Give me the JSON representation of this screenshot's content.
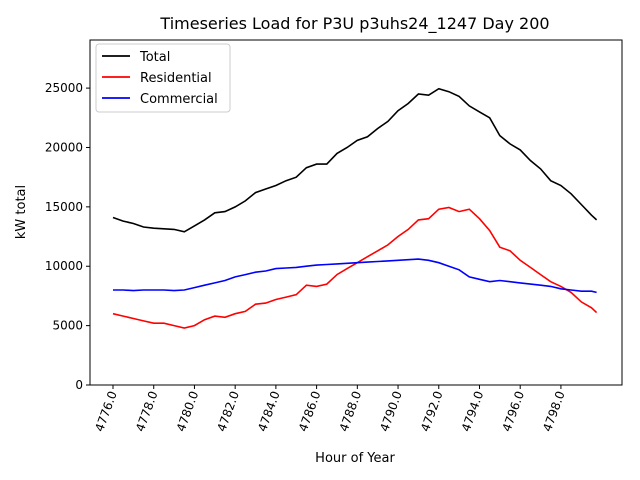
{
  "chart_data": {
    "type": "line",
    "title": "Timeseries Load for P3U p3uhs24_1247  Day 200",
    "xlabel": "Hour of Year",
    "ylabel": "kW total",
    "xlim": [
      4774.87,
      4801.0
    ],
    "ylim": [
      0,
      29050
    ],
    "xticks": [
      4776,
      4778,
      4780,
      4782,
      4784,
      4786,
      4788,
      4790,
      4792,
      4794,
      4796,
      4798
    ],
    "xtick_labels": [
      "4776.0",
      "4778.0",
      "4780.0",
      "4782.0",
      "4784.0",
      "4786.0",
      "4788.0",
      "4790.0",
      "4792.0",
      "4794.0",
      "4796.0",
      "4798.0"
    ],
    "yticks": [
      0,
      5000,
      10000,
      15000,
      20000,
      25000
    ],
    "ytick_labels": [
      "0",
      "5000",
      "10000",
      "15000",
      "20000",
      "25000"
    ],
    "grid": false,
    "legend_position": "top-left",
    "x": [
      4776,
      4776.5,
      4777,
      4777.5,
      4778,
      4778.5,
      4779,
      4779.5,
      4780,
      4780.5,
      4781,
      4781.5,
      4782,
      4782.5,
      4783,
      4783.5,
      4784,
      4784.5,
      4785,
      4785.5,
      4786,
      4786.5,
      4787,
      4787.5,
      4788,
      4788.5,
      4789,
      4789.5,
      4790,
      4790.5,
      4791,
      4791.5,
      4792,
      4792.5,
      4793,
      4793.5,
      4794,
      4794.5,
      4795,
      4795.5,
      4796,
      4796.5,
      4797,
      4797.5,
      4798,
      4798.5,
      4799,
      4799.5,
      4799.75
    ],
    "series": [
      {
        "name": "Total",
        "color": "#000000",
        "values": [
          14100,
          13800,
          13600,
          13300,
          13200,
          13150,
          13100,
          12900,
          13400,
          13900,
          14500,
          14600,
          15000,
          15500,
          16200,
          16500,
          16800,
          17200,
          17500,
          18300,
          18600,
          18600,
          19500,
          20000,
          20600,
          20900,
          21600,
          22200,
          23100,
          23700,
          24500,
          24400,
          24950,
          24700,
          24300,
          23500,
          23000,
          22500,
          21000,
          20300,
          19800,
          18900,
          18200,
          17200,
          16800,
          16100,
          15200,
          14300,
          13900
        ]
      },
      {
        "name": "Residential",
        "color": "#ff0000",
        "values": [
          6000,
          5800,
          5600,
          5400,
          5200,
          5200,
          5000,
          4800,
          5000,
          5500,
          5800,
          5700,
          6000,
          6200,
          6800,
          6900,
          7200,
          7400,
          7600,
          8400,
          8300,
          8500,
          9300,
          9800,
          10300,
          10800,
          11300,
          11800,
          12500,
          13100,
          13900,
          14000,
          14800,
          14950,
          14600,
          14800,
          14000,
          13000,
          11600,
          11300,
          10500,
          9900,
          9300,
          8700,
          8300,
          7800,
          7000,
          6500,
          6100
        ]
      },
      {
        "name": "Commercial",
        "color": "#0000ff",
        "values": [
          8000,
          8000,
          7950,
          8000,
          8000,
          8000,
          7950,
          8000,
          8200,
          8400,
          8600,
          8800,
          9100,
          9300,
          9500,
          9600,
          9800,
          9850,
          9900,
          10000,
          10100,
          10150,
          10200,
          10250,
          10300,
          10350,
          10400,
          10450,
          10500,
          10550,
          10600,
          10500,
          10300,
          10000,
          9700,
          9100,
          8900,
          8700,
          8800,
          8700,
          8600,
          8500,
          8400,
          8300,
          8100,
          8000,
          7900,
          7900,
          7800
        ]
      }
    ]
  }
}
